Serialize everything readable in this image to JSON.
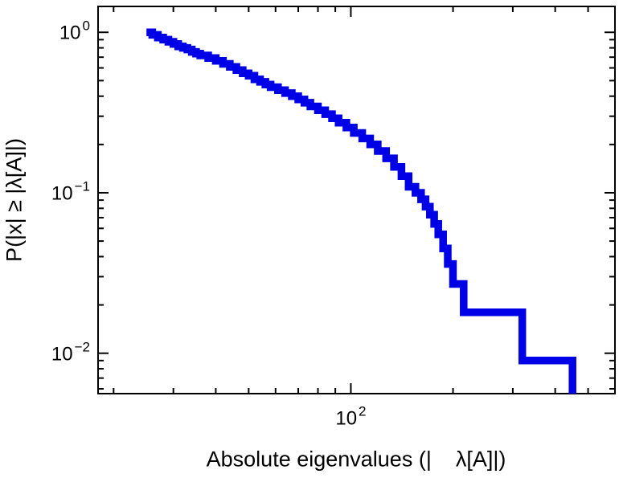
{
  "chart_data": {
    "type": "line",
    "subtype": "ccdf-step-loglog",
    "title": "",
    "xlabel": "Absolute eigenvalues (|    λ[A]|)",
    "ylabel": "P(|x| ≥ |λ[A]|)",
    "xscale": "log",
    "yscale": "log",
    "xlim": [
      18,
      600
    ],
    "ylim": [
      0.0056,
      1.45
    ],
    "grid": false,
    "legend": null,
    "frame_color": "#000000",
    "background": "#ffffff",
    "x_major_ticks": [
      {
        "value": 100,
        "base": "10",
        "exp": "2"
      }
    ],
    "x_minor_ticks": [
      20,
      30,
      40,
      50,
      60,
      70,
      80,
      90,
      200,
      300,
      400,
      500,
      600
    ],
    "y_major_ticks": [
      {
        "value": 1,
        "base": "10",
        "exp": "0"
      },
      {
        "value": 0.1,
        "base": "10",
        "exp": "−1"
      },
      {
        "value": 0.01,
        "base": "10",
        "exp": "−2"
      }
    ],
    "y_minor_ticks": [
      0.9,
      0.8,
      0.7,
      0.6,
      0.5,
      0.4,
      0.3,
      0.2,
      0.09,
      0.08,
      0.07,
      0.06,
      0.05,
      0.04,
      0.03,
      0.02,
      0.009,
      0.008,
      0.007,
      0.006
    ],
    "series": [
      {
        "name": "eigenvalue-ccdf",
        "color": "#0000e6",
        "line_width": 9.5,
        "step": "post",
        "points": [
          [
            25,
            1.0
          ],
          [
            26,
            0.964
          ],
          [
            27,
            0.927
          ],
          [
            28,
            0.9
          ],
          [
            29,
            0.873
          ],
          [
            30,
            0.845
          ],
          [
            31,
            0.818
          ],
          [
            32,
            0.8
          ],
          [
            33,
            0.782
          ],
          [
            34,
            0.755
          ],
          [
            35,
            0.736
          ],
          [
            36,
            0.718
          ],
          [
            38,
            0.691
          ],
          [
            40,
            0.664
          ],
          [
            42,
            0.636
          ],
          [
            44,
            0.609
          ],
          [
            46,
            0.582
          ],
          [
            48,
            0.555
          ],
          [
            50,
            0.536
          ],
          [
            52,
            0.509
          ],
          [
            54,
            0.491
          ],
          [
            56,
            0.473
          ],
          [
            58,
            0.455
          ],
          [
            61,
            0.436
          ],
          [
            64,
            0.418
          ],
          [
            67,
            0.4
          ],
          [
            70,
            0.382
          ],
          [
            73,
            0.364
          ],
          [
            76,
            0.345
          ],
          [
            80,
            0.327
          ],
          [
            84,
            0.309
          ],
          [
            88,
            0.291
          ],
          [
            92,
            0.273
          ],
          [
            97,
            0.255
          ],
          [
            102,
            0.236
          ],
          [
            108,
            0.218
          ],
          [
            114,
            0.2
          ],
          [
            120,
            0.182
          ],
          [
            127,
            0.164
          ],
          [
            134,
            0.145
          ],
          [
            141,
            0.127
          ],
          [
            148,
            0.109
          ],
          [
            155,
            0.1
          ],
          [
            161,
            0.091
          ],
          [
            166,
            0.082
          ],
          [
            171,
            0.073
          ],
          [
            176,
            0.064
          ],
          [
            181,
            0.055
          ],
          [
            187,
            0.045
          ],
          [
            193,
            0.036
          ],
          [
            200,
            0.027
          ],
          [
            215,
            0.018
          ],
          [
            320,
            0.009
          ],
          [
            450,
            0.0056
          ]
        ]
      }
    ]
  }
}
